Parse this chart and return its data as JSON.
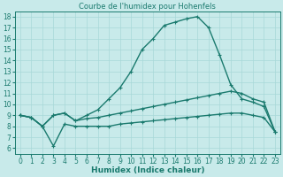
{
  "title": "Courbe de l'humidex pour Hohenfels",
  "xlabel": "Humidex (Indice chaleur)",
  "bg_color": "#c8eaea",
  "line_color": "#1a7a6e",
  "grid_color": "#a8d8d8",
  "xlim": [
    -0.5,
    23.5
  ],
  "ylim": [
    5.5,
    18.5
  ],
  "xticks": [
    0,
    1,
    2,
    3,
    4,
    5,
    6,
    7,
    8,
    9,
    10,
    11,
    12,
    13,
    14,
    15,
    16,
    17,
    18,
    19,
    20,
    21,
    22,
    23
  ],
  "yticks": [
    6,
    7,
    8,
    9,
    10,
    11,
    12,
    13,
    14,
    15,
    16,
    17,
    18
  ],
  "line_top_x": [
    0,
    1,
    2,
    3,
    4,
    5,
    6,
    7,
    8,
    9,
    10,
    11,
    12,
    13,
    14,
    15,
    16,
    17,
    18,
    19,
    20,
    21,
    22,
    23
  ],
  "line_top_y": [
    9.0,
    8.8,
    8.0,
    9.0,
    9.2,
    8.5,
    9.0,
    9.5,
    10.5,
    11.5,
    13.0,
    15.0,
    16.0,
    17.2,
    17.5,
    17.8,
    18.0,
    17.0,
    14.5,
    11.8,
    10.5,
    10.2,
    9.8,
    7.5
  ],
  "line_mid_x": [
    0,
    1,
    2,
    3,
    4,
    5,
    6,
    7,
    8,
    9,
    10,
    11,
    12,
    13,
    14,
    15,
    16,
    17,
    18,
    19,
    20,
    21,
    22,
    23
  ],
  "line_mid_y": [
    9.0,
    8.8,
    8.0,
    9.0,
    9.2,
    8.5,
    8.7,
    8.8,
    9.0,
    9.2,
    9.4,
    9.6,
    9.8,
    10.0,
    10.2,
    10.4,
    10.6,
    10.8,
    11.0,
    11.2,
    11.0,
    10.5,
    10.2,
    7.5
  ],
  "line_bot_x": [
    0,
    1,
    2,
    3,
    4,
    5,
    6,
    7,
    8,
    9,
    10,
    11,
    12,
    13,
    14,
    15,
    16,
    17,
    18,
    19,
    20,
    21,
    22,
    23
  ],
  "line_bot_y": [
    9.0,
    8.8,
    8.0,
    6.2,
    8.2,
    8.0,
    8.0,
    8.0,
    8.0,
    8.2,
    8.3,
    8.4,
    8.5,
    8.6,
    8.7,
    8.8,
    8.9,
    9.0,
    9.1,
    9.2,
    9.2,
    9.0,
    8.8,
    7.5
  ],
  "marker": "+",
  "marker_size": 3.5,
  "line_width": 1.0,
  "font_size_ticks": 5.5,
  "font_size_label": 6.5,
  "font_size_title": 6.0
}
